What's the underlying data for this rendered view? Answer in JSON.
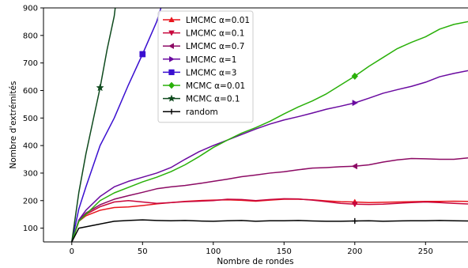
{
  "chart_data": {
    "type": "line",
    "xlabel": "Nombre de rondes",
    "ylabel": "Nombre d'extrémités",
    "xlim": [
      -20,
      280
    ],
    "ylim": [
      50,
      900
    ],
    "xticks": [
      0,
      50,
      100,
      150,
      200,
      250
    ],
    "yticks": [
      100,
      200,
      300,
      400,
      500,
      600,
      700,
      800,
      900
    ],
    "legend_position": "top-center",
    "series": [
      {
        "name": "LMCMC α=0.01",
        "color": "#e8141c",
        "marker": "triangle-up",
        "marker_x": [
          200
        ],
        "x": [
          0,
          5,
          10,
          20,
          30,
          40,
          50,
          60,
          70,
          80,
          90,
          100,
          110,
          120,
          130,
          140,
          150,
          160,
          170,
          180,
          190,
          200,
          210,
          220,
          230,
          240,
          250,
          260,
          270,
          280
        ],
        "y": [
          50,
          125,
          145,
          165,
          175,
          177,
          182,
          188,
          193,
          197,
          200,
          202,
          203,
          201,
          198,
          202,
          205,
          205,
          203,
          199,
          196,
          195,
          193,
          194,
          195,
          196,
          197,
          197,
          198,
          197
        ]
      },
      {
        "name": "LMCMC α=0.1",
        "color": "#c8063c",
        "marker": "triangle-down",
        "marker_x": [
          200
        ],
        "x": [
          0,
          5,
          10,
          20,
          30,
          40,
          50,
          60,
          70,
          80,
          90,
          100,
          110,
          120,
          130,
          140,
          150,
          160,
          170,
          180,
          190,
          200,
          210,
          220,
          230,
          240,
          250,
          260,
          270,
          280
        ],
        "y": [
          50,
          128,
          150,
          178,
          195,
          200,
          195,
          190,
          193,
          196,
          198,
          200,
          205,
          204,
          200,
          204,
          207,
          206,
          202,
          196,
          190,
          187,
          186,
          187,
          190,
          193,
          195,
          193,
          190,
          188
        ]
      },
      {
        "name": "LMCMC α=0.7",
        "color": "#8c0a64",
        "marker": "triangle-left",
        "marker_x": [
          200
        ],
        "x": [
          0,
          5,
          10,
          20,
          30,
          40,
          50,
          60,
          70,
          80,
          90,
          100,
          110,
          120,
          130,
          140,
          150,
          160,
          170,
          180,
          190,
          200,
          210,
          220,
          230,
          240,
          250,
          260,
          270,
          280
        ],
        "y": [
          50,
          128,
          155,
          185,
          205,
          218,
          230,
          243,
          250,
          255,
          262,
          270,
          278,
          287,
          293,
          300,
          305,
          312,
          318,
          320,
          323,
          325,
          330,
          340,
          348,
          353,
          352,
          350,
          350,
          355
        ]
      },
      {
        "name": "LMCMC α=1",
        "color": "#6a0aa0",
        "marker": "triangle-right",
        "marker_x": [
          200
        ],
        "x": [
          0,
          5,
          10,
          20,
          30,
          40,
          50,
          60,
          70,
          80,
          90,
          100,
          110,
          120,
          130,
          140,
          150,
          160,
          170,
          180,
          190,
          200,
          210,
          220,
          230,
          240,
          250,
          260,
          270,
          280
        ],
        "y": [
          50,
          130,
          165,
          215,
          250,
          270,
          285,
          300,
          320,
          350,
          378,
          400,
          420,
          440,
          460,
          478,
          493,
          505,
          518,
          532,
          543,
          555,
          572,
          590,
          603,
          615,
          630,
          650,
          662,
          672
        ]
      },
      {
        "name": "LMCMC α=3",
        "color": "#3a0fd0",
        "marker": "square",
        "marker_x": [
          50
        ],
        "x": [
          0,
          5,
          10,
          20,
          30,
          40,
          50,
          60,
          63
        ],
        "y": [
          50,
          170,
          250,
          400,
          500,
          620,
          732,
          850,
          900
        ]
      },
      {
        "name": "MCMC α=0.01",
        "color": "#2ab00a",
        "marker": "diamond",
        "marker_x": [
          200
        ],
        "x": [
          0,
          5,
          10,
          20,
          30,
          40,
          50,
          60,
          70,
          80,
          90,
          100,
          110,
          120,
          130,
          140,
          150,
          160,
          170,
          180,
          190,
          200,
          210,
          220,
          230,
          240,
          250,
          260,
          270,
          280
        ],
        "y": [
          50,
          125,
          150,
          200,
          228,
          248,
          268,
          285,
          305,
          330,
          360,
          393,
          420,
          445,
          465,
          488,
          515,
          540,
          562,
          588,
          620,
          652,
          688,
          720,
          752,
          775,
          795,
          823,
          840,
          850
        ]
      },
      {
        "name": "MCMC α=0.1",
        "color": "#0f4a1e",
        "marker": "star",
        "marker_x": [
          20
        ],
        "x": [
          0,
          5,
          10,
          15,
          20,
          25,
          30,
          30.7
        ],
        "y": [
          50,
          230,
          370,
          490,
          610,
          750,
          870,
          900
        ]
      },
      {
        "name": "random",
        "color": "#000000",
        "marker": "plus",
        "marker_x": [
          200
        ],
        "x": [
          0,
          5,
          10,
          15,
          20,
          30,
          40,
          50,
          60,
          70,
          80,
          90,
          100,
          110,
          120,
          130,
          140,
          150,
          160,
          170,
          180,
          190,
          200,
          210,
          220,
          230,
          240,
          250,
          260,
          270,
          280
        ],
        "y": [
          50,
          100,
          105,
          110,
          115,
          125,
          128,
          130,
          128,
          127,
          128,
          126,
          125,
          127,
          128,
          125,
          127,
          127,
          128,
          126,
          125,
          125,
          126,
          127,
          125,
          126,
          127,
          127,
          128,
          127,
          126
        ]
      }
    ]
  }
}
